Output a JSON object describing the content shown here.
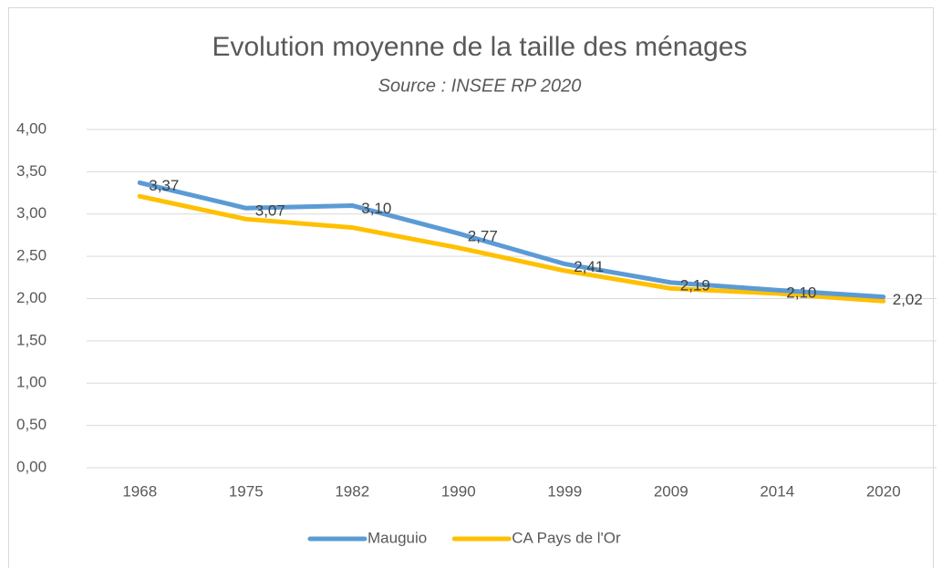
{
  "chart_data": {
    "type": "line",
    "title": "Evolution moyenne de la taille des ménages",
    "subtitle": "Source : INSEE RP 2020",
    "categories": [
      "1968",
      "1975",
      "1982",
      "1990",
      "1999",
      "2009",
      "2014",
      "2020"
    ],
    "series": [
      {
        "name": "Mauguio",
        "color": "#5b9bd5",
        "values": [
          3.37,
          3.07,
          3.1,
          2.77,
          2.41,
          2.19,
          2.1,
          2.02
        ],
        "value_labels": [
          "3,37",
          "3,07",
          "3,10",
          "2,77",
          "2,41",
          "2,19",
          "2,10",
          "2,02"
        ]
      },
      {
        "name": "CA Pays de l'Or",
        "color": "#ffc000",
        "values": [
          3.21,
          2.94,
          2.84,
          2.6,
          2.33,
          2.12,
          2.06,
          1.97
        ]
      }
    ],
    "ylim": [
      0,
      4
    ],
    "yticks": [
      {
        "value": 0,
        "label": "0,00"
      },
      {
        "value": 0.5,
        "label": "0,50"
      },
      {
        "value": 1,
        "label": "1,00"
      },
      {
        "value": 1.5,
        "label": "1,50"
      },
      {
        "value": 2,
        "label": "2,00"
      },
      {
        "value": 2.5,
        "label": "2,50"
      },
      {
        "value": 3,
        "label": "3,00"
      },
      {
        "value": 3.5,
        "label": "3,50"
      },
      {
        "value": 4,
        "label": "4,00"
      }
    ],
    "grid": true,
    "legend": "bottom"
  }
}
